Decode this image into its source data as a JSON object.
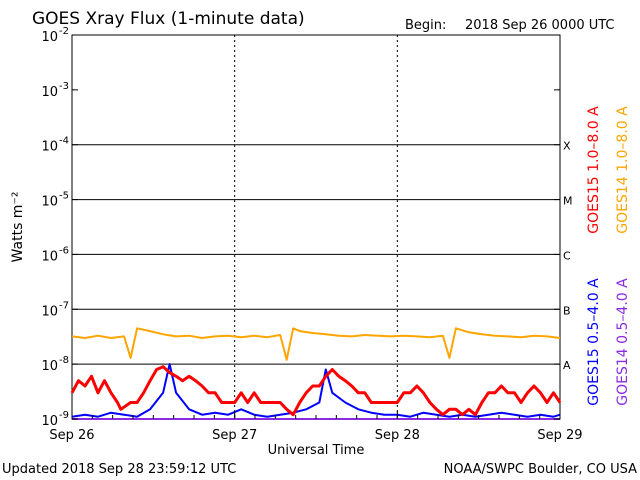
{
  "header": {
    "title": "GOES Xray Flux (1-minute data)",
    "begin_label": "Begin:",
    "begin_value": "2018 Sep 26 0000 UTC"
  },
  "footer": {
    "updated": "Updated 2018 Sep 28 23:59:12 UTC",
    "credit": "NOAA/SWPC Boulder, CO USA"
  },
  "chart_data": {
    "type": "line",
    "title": "GOES Xray Flux (1-minute data)",
    "xlabel": "Universal Time",
    "ylabel": "Watts m⁻²",
    "y_scale": "log",
    "ylim": [
      1e-09,
      0.01
    ],
    "y_ticks": [
      {
        "base": "10",
        "exp": "-9"
      },
      {
        "base": "10",
        "exp": "-8"
      },
      {
        "base": "10",
        "exp": "-7"
      },
      {
        "base": "10",
        "exp": "-6"
      },
      {
        "base": "10",
        "exp": "-5"
      },
      {
        "base": "10",
        "exp": "-4"
      },
      {
        "base": "10",
        "exp": "-3"
      },
      {
        "base": "10",
        "exp": "-2"
      }
    ],
    "x_ticks": [
      "Sep 26",
      "Sep 27",
      "Sep 28",
      "Sep 29"
    ],
    "xlim_days": [
      0,
      3
    ],
    "flare_classes": [
      {
        "label": "A",
        "value": 1e-08
      },
      {
        "label": "B",
        "value": 1e-07
      },
      {
        "label": "C",
        "value": 1e-06
      },
      {
        "label": "M",
        "value": 1e-05
      },
      {
        "label": "X",
        "value": 0.0001
      }
    ],
    "grid": true,
    "legend_position": "right",
    "series": [
      {
        "name": "GOES15 1.0–8.0 A",
        "color": "#ff0000",
        "x": [
          0,
          0.04,
          0.08,
          0.12,
          0.16,
          0.2,
          0.24,
          0.28,
          0.3,
          0.36,
          0.4,
          0.44,
          0.48,
          0.52,
          0.56,
          0.6,
          0.64,
          0.68,
          0.72,
          0.76,
          0.8,
          0.84,
          0.88,
          0.92,
          0.96,
          1.0,
          1.04,
          1.08,
          1.12,
          1.16,
          1.2,
          1.24,
          1.28,
          1.32,
          1.36,
          1.4,
          1.44,
          1.48,
          1.52,
          1.56,
          1.6,
          1.64,
          1.68,
          1.72,
          1.76,
          1.8,
          1.84,
          1.88,
          1.92,
          1.96,
          2.0,
          2.04,
          2.08,
          2.12,
          2.16,
          2.2,
          2.24,
          2.28,
          2.32,
          2.36,
          2.4,
          2.44,
          2.48,
          2.52,
          2.56,
          2.6,
          2.64,
          2.68,
          2.72,
          2.76,
          2.8,
          2.84,
          2.88,
          2.92,
          2.96,
          3.0
        ],
        "y": [
          3e-09,
          5e-09,
          4e-09,
          6e-09,
          3e-09,
          5e-09,
          3e-09,
          2e-09,
          1.5e-09,
          2e-09,
          2e-09,
          3e-09,
          5e-09,
          8e-09,
          9e-09,
          7e-09,
          6e-09,
          5e-09,
          6e-09,
          5e-09,
          4e-09,
          3e-09,
          3e-09,
          2e-09,
          2e-09,
          2e-09,
          3e-09,
          2e-09,
          3e-09,
          2e-09,
          2e-09,
          2e-09,
          2e-09,
          1.5e-09,
          1.2e-09,
          2e-09,
          3e-09,
          4e-09,
          4e-09,
          6e-09,
          8e-09,
          6e-09,
          5e-09,
          4e-09,
          3e-09,
          3e-09,
          2e-09,
          2e-09,
          2e-09,
          2e-09,
          2e-09,
          3e-09,
          3e-09,
          4e-09,
          3e-09,
          2e-09,
          1.5e-09,
          1.2e-09,
          1.5e-09,
          1.5e-09,
          1.2e-09,
          1.5e-09,
          1.2e-09,
          2e-09,
          3e-09,
          3e-09,
          4e-09,
          3e-09,
          3e-09,
          2e-09,
          3e-09,
          4e-09,
          3e-09,
          2e-09,
          3e-09,
          2e-09
        ]
      },
      {
        "name": "GOES14 1.0–8.0 A",
        "color": "#ffa500",
        "x": [
          0,
          0.08,
          0.16,
          0.24,
          0.32,
          0.36,
          0.4,
          0.48,
          0.56,
          0.64,
          0.72,
          0.8,
          0.88,
          0.96,
          1.04,
          1.12,
          1.2,
          1.28,
          1.32,
          1.36,
          1.4,
          1.48,
          1.56,
          1.64,
          1.72,
          1.8,
          1.88,
          1.96,
          2.04,
          2.12,
          2.2,
          2.28,
          2.32,
          2.36,
          2.44,
          2.52,
          2.6,
          2.68,
          2.76,
          2.84,
          2.92,
          3.0
        ],
        "y": [
          3.2e-08,
          3e-08,
          3.3e-08,
          3e-08,
          3.2e-08,
          1.3e-08,
          4.5e-08,
          4e-08,
          3.5e-08,
          3.2e-08,
          3.3e-08,
          3e-08,
          3.2e-08,
          3.3e-08,
          3.1e-08,
          3.3e-08,
          3.1e-08,
          3.4e-08,
          1.2e-08,
          4.5e-08,
          4e-08,
          3.7e-08,
          3.5e-08,
          3.3e-08,
          3.2e-08,
          3.4e-08,
          3.3e-08,
          3.2e-08,
          3.3e-08,
          3.2e-08,
          3.1e-08,
          3.3e-08,
          1.3e-08,
          4.5e-08,
          3.8e-08,
          3.5e-08,
          3.3e-08,
          3.2e-08,
          3.1e-08,
          3.3e-08,
          3.2e-08,
          3e-08
        ]
      },
      {
        "name": "GOES15 0.5–4.0 A",
        "color": "#0000ff",
        "x": [
          0,
          0.08,
          0.16,
          0.24,
          0.32,
          0.4,
          0.48,
          0.56,
          0.6,
          0.64,
          0.72,
          0.8,
          0.88,
          0.96,
          1.04,
          1.12,
          1.2,
          1.28,
          1.36,
          1.44,
          1.52,
          1.56,
          1.6,
          1.68,
          1.76,
          1.84,
          1.92,
          2.0,
          2.08,
          2.16,
          2.24,
          2.32,
          2.4,
          2.48,
          2.56,
          2.64,
          2.72,
          2.8,
          2.88,
          2.96,
          3.0
        ],
        "y": [
          1.1e-09,
          1.2e-09,
          1.1e-09,
          1.3e-09,
          1.2e-09,
          1.1e-09,
          1.5e-09,
          3e-09,
          1e-08,
          3e-09,
          1.5e-09,
          1.2e-09,
          1.3e-09,
          1.2e-09,
          1.5e-09,
          1.2e-09,
          1.1e-09,
          1.2e-09,
          1.3e-09,
          1.5e-09,
          2e-09,
          8e-09,
          3e-09,
          2e-09,
          1.5e-09,
          1.3e-09,
          1.2e-09,
          1.2e-09,
          1.1e-09,
          1.3e-09,
          1.2e-09,
          1.1e-09,
          1.2e-09,
          1.1e-09,
          1.2e-09,
          1.3e-09,
          1.2e-09,
          1.1e-09,
          1.2e-09,
          1.1e-09,
          1.2e-09
        ]
      },
      {
        "name": "GOES14 0.5–4.0 A",
        "color": "#8a2be2",
        "x": [
          0,
          0.5,
          1.0,
          1.5,
          2.0,
          2.5,
          3.0
        ],
        "y": [
          1e-09,
          1e-09,
          1e-09,
          1e-09,
          1e-09,
          1e-09,
          1e-09
        ]
      }
    ]
  }
}
